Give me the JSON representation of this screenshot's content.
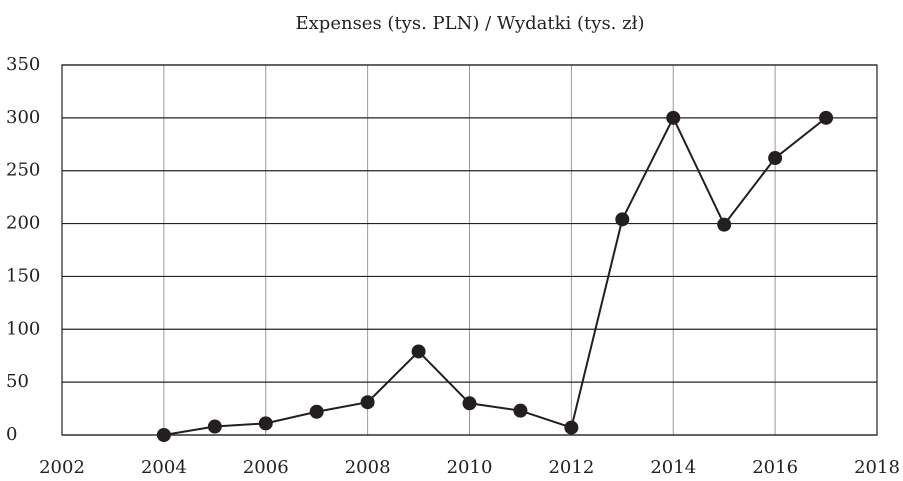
{
  "chart_data": {
    "type": "line",
    "title": "Expenses (tys. PLN) /  Wydatki (tys. zł)",
    "x": [
      2004,
      2005,
      2006,
      2007,
      2008,
      2009,
      2010,
      2011,
      2012,
      2013,
      2014,
      2015,
      2016,
      2017
    ],
    "series": [
      {
        "name": "Expenses",
        "color": "#231f20",
        "values": [
          0,
          8,
          11,
          22,
          31,
          79,
          30,
          23,
          7,
          204,
          300,
          199,
          262,
          300
        ]
      }
    ],
    "xlim": [
      2002,
      2018
    ],
    "xticks": [
      2002,
      2004,
      2006,
      2008,
      2010,
      2012,
      2014,
      2016,
      2018
    ],
    "ylim": [
      0,
      350
    ],
    "yticks": [
      0,
      50,
      100,
      150,
      200,
      250,
      300,
      350
    ],
    "grid": true
  }
}
